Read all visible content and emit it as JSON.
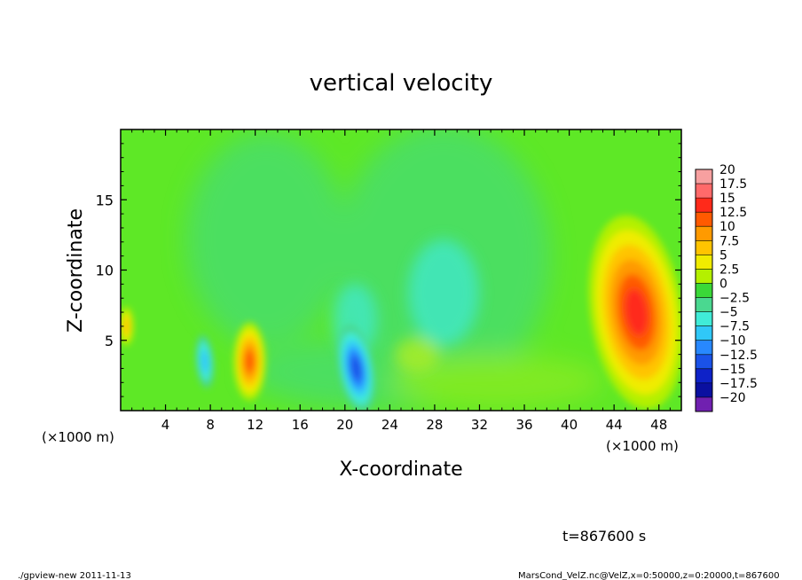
{
  "chart_data": {
    "type": "heatmap",
    "title": "vertical velocity",
    "xlabel": "X-coordinate",
    "ylabel": "Z-coordinate",
    "x_unit_left": "(×1000 m)",
    "x_unit_right": "(×1000 m)",
    "xlim": [
      0,
      50
    ],
    "ylim": [
      0,
      20
    ],
    "x_ticks": [
      4,
      8,
      12,
      16,
      20,
      24,
      28,
      32,
      36,
      40,
      44,
      48
    ],
    "x_tick_labels": [
      "4",
      "8",
      "12",
      "16",
      "20",
      "24",
      "28",
      "32",
      "36",
      "40",
      "44",
      "48"
    ],
    "y_ticks": [
      5,
      10,
      15
    ],
    "y_tick_labels": [
      "5",
      "10",
      "15"
    ],
    "colorbar": {
      "levels": [
        20,
        17.5,
        15,
        12.5,
        10,
        7.5,
        5,
        2.5,
        0,
        -2.5,
        -5,
        -7.5,
        -10,
        -12.5,
        -15,
        -17.5,
        -20
      ],
      "labels": [
        "20",
        "17.5",
        "15",
        "12.5",
        "10",
        "7.5",
        "5",
        "2.5",
        "0",
        "−2.5",
        "−5",
        "−7.5",
        "−10",
        "−12.5",
        "−15",
        "−17.5",
        "−20"
      ],
      "colors": [
        "#f7a0a0",
        "#ff6a6a",
        "#ff2a1a",
        "#ff5a00",
        "#ff9a00",
        "#ffc400",
        "#f0ec00",
        "#b4f000",
        "#3ad838",
        "#4ad890",
        "#40ecd8",
        "#30c8f8",
        "#2888ff",
        "#1a52e8",
        "#0e22c8",
        "#0a10a0",
        "#7020b0"
      ]
    },
    "features": [
      {
        "x": 46,
        "z": 7,
        "value": 15
      },
      {
        "x": 11.5,
        "z": 3.5,
        "value": 12.5
      },
      {
        "x": 21,
        "z": 3,
        "value": -12.5
      },
      {
        "x": 7.5,
        "z": 3.5,
        "value": -7.5
      },
      {
        "x": 0.5,
        "z": 6,
        "value": 7.5
      }
    ]
  },
  "annotations": {
    "time": "t=867600 s",
    "footer_left": "./gpview-new  2011-11-13",
    "footer_right": "MarsCond_VelZ.nc@VelZ,x=0:50000,z=0:20000,t=867600"
  }
}
